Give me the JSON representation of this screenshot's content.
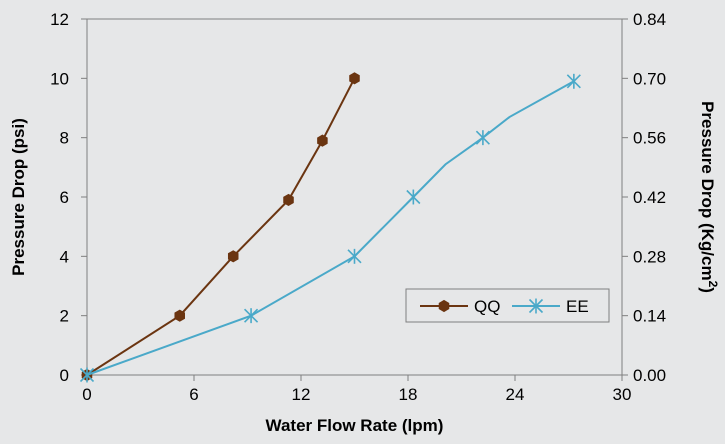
{
  "chart_data": {
    "type": "line",
    "xlabel": "Water Flow Rate (lpm)",
    "ylabel": "Pressure Drop  (psi)",
    "y2label_main": "Pressure Drop (Kg/cm",
    "y2label_sup": "2",
    "y2label_close": ")",
    "xlim": [
      0,
      30
    ],
    "ylim": [
      0,
      12
    ],
    "y2lim": [
      0,
      0.84
    ],
    "xticks": [
      "0",
      "6",
      "12",
      "18",
      "24",
      "30"
    ],
    "yticks": [
      "0",
      "2",
      "4",
      "6",
      "8",
      "10",
      "12"
    ],
    "y2ticks": [
      "0.00",
      "0.14",
      "0.28",
      "0.42",
      "0.56",
      "0.70",
      "0.84"
    ],
    "grid": false,
    "legend_position": "lower-right",
    "series": [
      {
        "name": "QQ",
        "color": "#6b3511",
        "marker": "hexagon",
        "x": [
          0,
          5.2,
          8.2,
          11.3,
          13.2,
          15.0
        ],
        "y": [
          0,
          2,
          4,
          5.9,
          7.9,
          10
        ]
      },
      {
        "name": "EE",
        "color": "#4aa9c9",
        "marker": "asterisk",
        "x": [
          0,
          9.2,
          15.0,
          18.3,
          20.1,
          22.2,
          23.7,
          27.3
        ],
        "y": [
          0,
          2,
          4,
          6,
          7.1,
          8,
          8.7,
          9.9
        ],
        "marked": [
          true,
          true,
          true,
          true,
          false,
          true,
          false,
          true
        ]
      }
    ]
  }
}
